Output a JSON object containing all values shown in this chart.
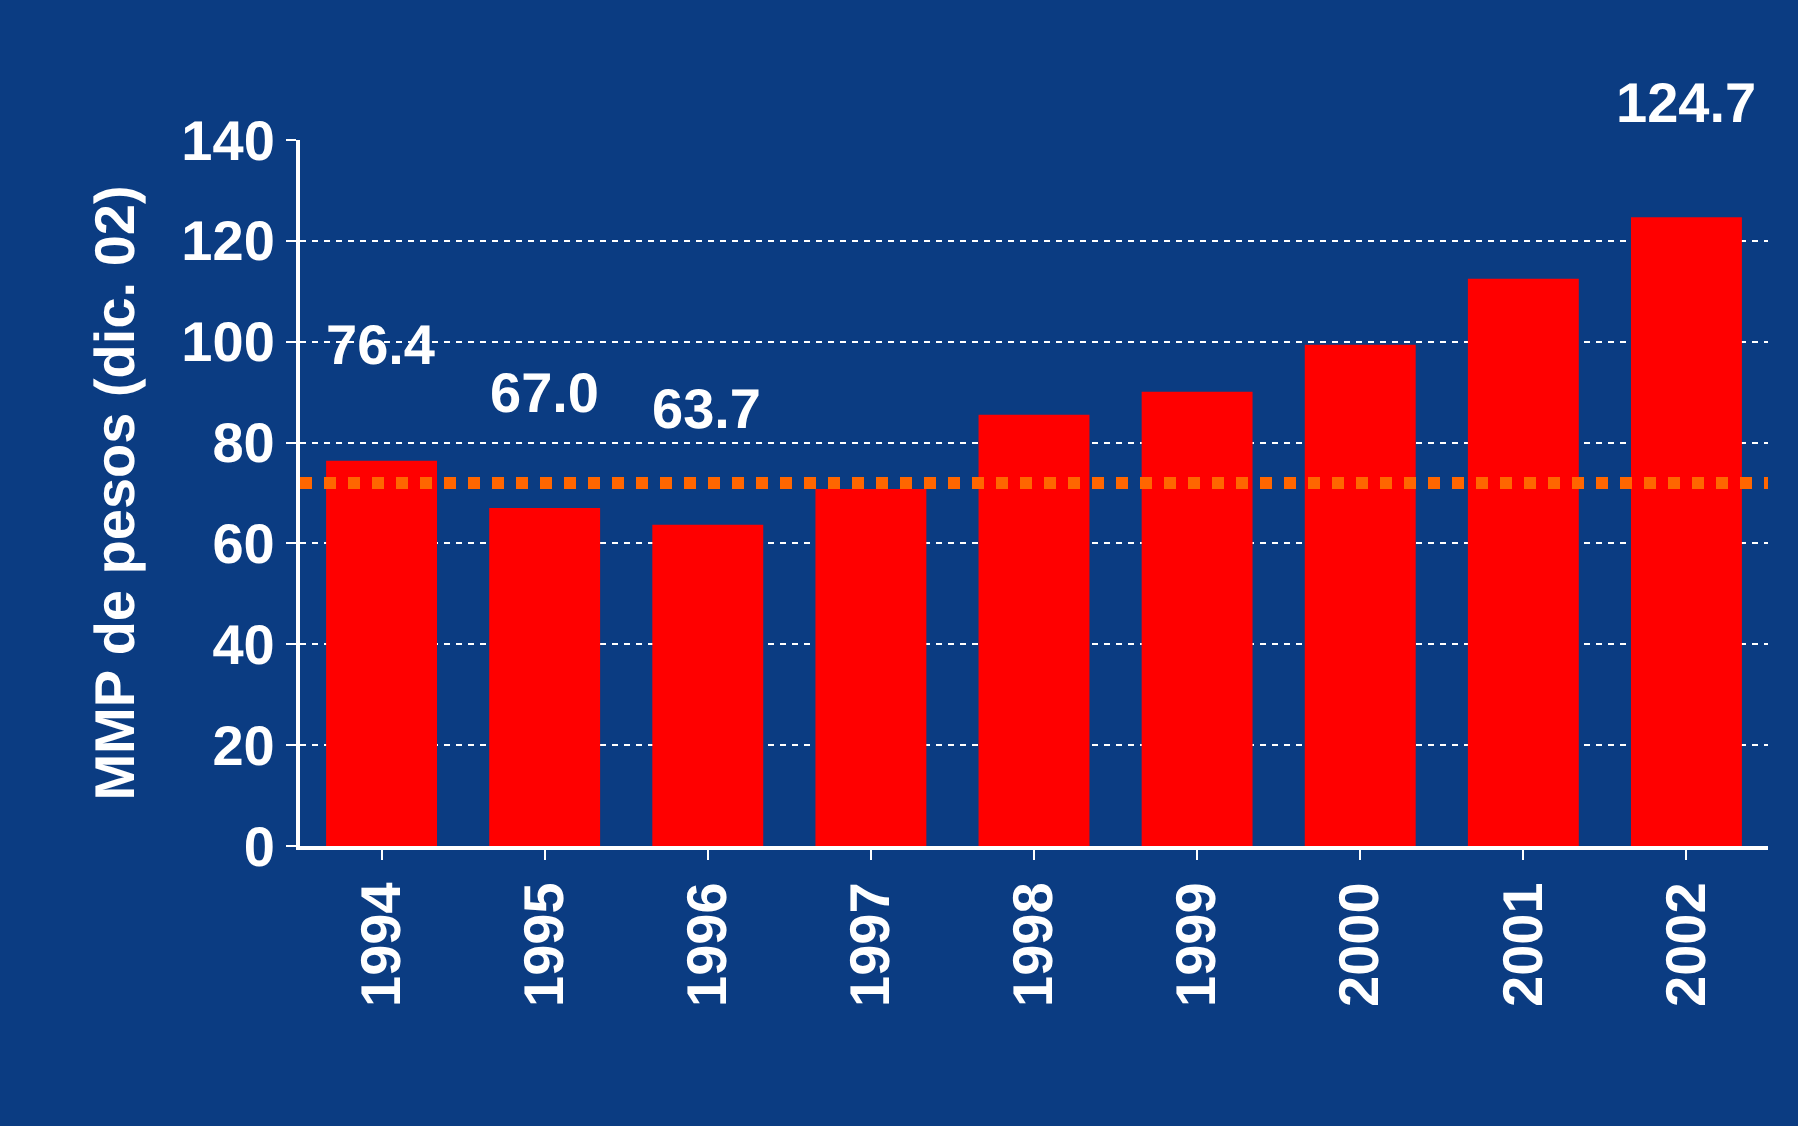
{
  "chart_data": {
    "type": "bar",
    "ylabel": "MMP de pesos (dic. 02)",
    "categories": [
      "1994",
      "1995",
      "1996",
      "1997",
      "1998",
      "1999",
      "2000",
      "2001",
      "2002"
    ],
    "values": [
      76.4,
      67.0,
      63.7,
      70.8,
      85.5,
      90.1,
      99.4,
      112.5,
      124.7
    ],
    "value_labels": [
      "76.4",
      "67.0",
      "63.7",
      null,
      null,
      null,
      null,
      null,
      "124.7"
    ],
    "color": "#ff0000",
    "ylim": [
      0,
      140
    ],
    "yticks": [
      0,
      20,
      40,
      60,
      80,
      100,
      120,
      140
    ],
    "grid": "y",
    "ref_lines": [
      {
        "axis": "y",
        "value": 72,
        "color": "#ff6600",
        "line_style": "dotted"
      }
    ]
  }
}
